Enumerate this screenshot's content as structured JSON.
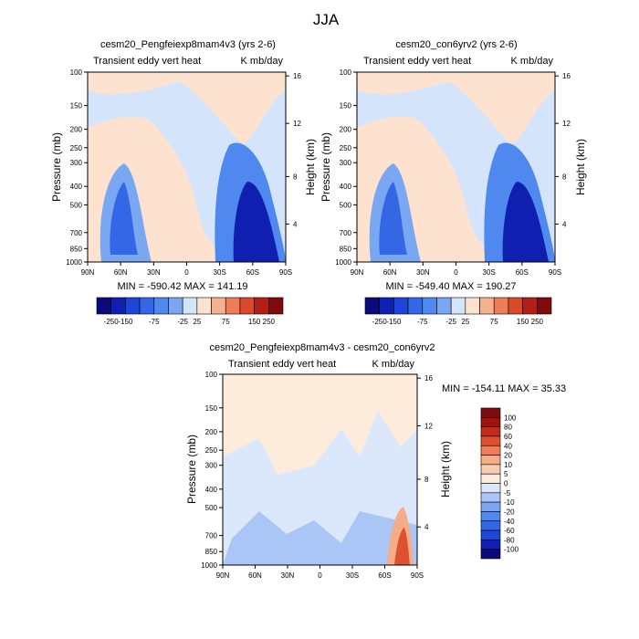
{
  "page_title": "JJA",
  "chart_data": [
    {
      "type": "heatmap",
      "title": "cesm20_Pengfeiexp8mam4v3 (yrs 2-6)",
      "subtitle_left": "Transient eddy vert heat",
      "subtitle_right": "K mb/day",
      "ylabel": "Pressure (mb)",
      "ylabel_right": "Height (km)",
      "x_ticks": [
        "90N",
        "60N",
        "30N",
        "0",
        "30S",
        "60S",
        "90S"
      ],
      "y_ticks": [
        "100",
        "150",
        "200",
        "250",
        "300",
        "400",
        "500",
        "700",
        "850",
        "1000"
      ],
      "y_ticks_right": [
        "16",
        "12",
        "8",
        "4"
      ],
      "stats": "MIN = -590.42  MAX = 141.19",
      "levels": [
        -250,
        -150,
        -100,
        -75,
        -50,
        -25,
        25,
        50,
        75,
        100,
        150,
        250
      ],
      "level_labels": [
        "-250",
        "-150",
        "-75",
        "-25",
        "25",
        "75",
        "150",
        "250"
      ],
      "colors": [
        "#0a0a7a",
        "#0f1fb0",
        "#1f45d8",
        "#3367e6",
        "#4f88ee",
        "#7aa7f2",
        "#d4e4fb",
        "#fde3cf",
        "#f5b290",
        "#ef7e58",
        "#d94a2c",
        "#b31f17",
        "#7f0b0b"
      ]
    },
    {
      "type": "heatmap",
      "title": "cesm20_con6yrv2 (yrs 2-6)",
      "subtitle_left": "Transient eddy vert heat",
      "subtitle_right": "K mb/day",
      "ylabel": "Pressure (mb)",
      "ylabel_right": "Height (km)",
      "x_ticks": [
        "90N",
        "60N",
        "30N",
        "0",
        "30S",
        "60S",
        "90S"
      ],
      "y_ticks": [
        "100",
        "150",
        "200",
        "250",
        "300",
        "400",
        "500",
        "700",
        "850",
        "1000"
      ],
      "y_ticks_right": [
        "16",
        "12",
        "8",
        "4"
      ],
      "stats": "MIN = -549.40  MAX = 190.27",
      "levels": [
        -250,
        -150,
        -100,
        -75,
        -50,
        -25,
        25,
        50,
        75,
        100,
        150,
        250
      ],
      "level_labels": [
        "-250",
        "-150",
        "-75",
        "-25",
        "25",
        "75",
        "150",
        "250"
      ],
      "colors": [
        "#0a0a7a",
        "#0f1fb0",
        "#1f45d8",
        "#3367e6",
        "#4f88ee",
        "#7aa7f2",
        "#d4e4fb",
        "#fde3cf",
        "#f5b290",
        "#ef7e58",
        "#d94a2c",
        "#b31f17",
        "#7f0b0b"
      ]
    },
    {
      "type": "heatmap",
      "title": "cesm20_Pengfeiexp8mam4v3 - cesm20_con6yrv2",
      "subtitle_left": "Transient eddy vert heat",
      "subtitle_right": "K mb/day",
      "ylabel": "Pressure (mb)",
      "ylabel_right": "Height (km)",
      "x_ticks": [
        "90N",
        "60N",
        "30N",
        "0",
        "30S",
        "60S",
        "90S"
      ],
      "y_ticks": [
        "100",
        "150",
        "200",
        "250",
        "300",
        "400",
        "500",
        "700",
        "850",
        "1000"
      ],
      "y_ticks_right": [
        "16",
        "12",
        "8",
        "4"
      ],
      "stats": "MIN = -154.11  MAX =  35.33",
      "levels": [
        -100,
        -80,
        -60,
        -40,
        -20,
        -10,
        -5,
        0,
        5,
        10,
        20,
        40,
        60,
        80,
        100
      ],
      "level_labels": [
        "-100",
        "-80",
        "-60",
        "-40",
        "-20",
        "-10",
        "-5",
        "0",
        "5",
        "10",
        "20",
        "40",
        "60",
        "80",
        "100"
      ],
      "colors": [
        "#0a0a7a",
        "#0f1fb0",
        "#1f45d8",
        "#3367e6",
        "#4f88ee",
        "#7aa7f2",
        "#a9c6f6",
        "#dbe8fc",
        "#fdebdc",
        "#f9cdb0",
        "#f5ad88",
        "#ef7e58",
        "#dd5030",
        "#c22c18",
        "#a1120c",
        "#7f0b0b"
      ]
    }
  ]
}
